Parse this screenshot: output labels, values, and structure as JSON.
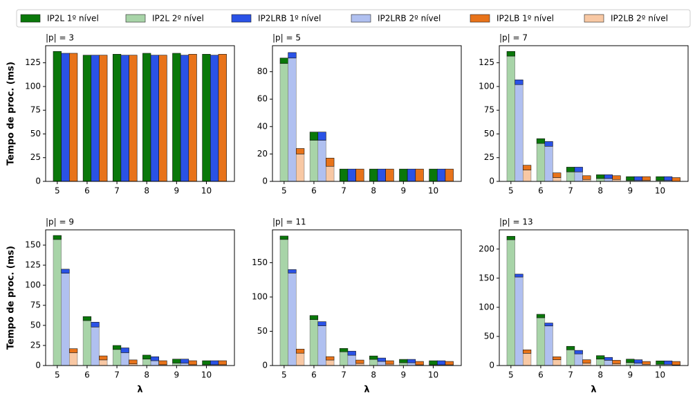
{
  "chart_data": [
    {
      "type": "bar",
      "title": "|p| = 3",
      "ylabel": "Tempo de proc. (ms)",
      "categories": [
        5,
        6,
        7,
        8,
        9,
        10
      ],
      "ylim": [
        0,
        143
      ],
      "yticks": [
        0,
        25,
        50,
        75,
        100,
        125
      ],
      "series": [
        {
          "name": "IP2L 1º nível",
          "color": "#0a780a",
          "values": [
            137,
            133,
            134,
            135,
            135,
            134
          ]
        },
        {
          "name": "IP2L 2º nível",
          "color": "#a8d4a8",
          "values": [
            0,
            0,
            0,
            0,
            0,
            0
          ]
        },
        {
          "name": "IP2LRB 1º nível",
          "color": "#2a52e6",
          "values": [
            135,
            133,
            133,
            133,
            133,
            133
          ]
        },
        {
          "name": "IP2LRB 2º nível",
          "color": "#b0c0f0",
          "values": [
            0,
            0,
            0,
            0,
            0,
            0
          ]
        },
        {
          "name": "IP2LB 1º nível",
          "color": "#e8731a",
          "values": [
            135,
            133,
            133,
            133,
            134,
            134
          ]
        },
        {
          "name": "IP2LB 2º nível",
          "color": "#f8c8a4",
          "values": [
            0,
            0,
            0,
            0,
            0,
            0
          ]
        }
      ]
    },
    {
      "type": "bar",
      "title": "|p| = 5",
      "categories": [
        5,
        6,
        7,
        8,
        9,
        10
      ],
      "ylim": [
        0,
        99
      ],
      "yticks": [
        0,
        20,
        40,
        60,
        80
      ],
      "series": [
        {
          "name": "IP2L 1º nível",
          "color": "#0a780a",
          "values": [
            4,
            6,
            9,
            9,
            9,
            9
          ]
        },
        {
          "name": "IP2L 2º nível",
          "color": "#a8d4a8",
          "values": [
            86,
            30,
            0,
            0,
            0,
            0
          ]
        },
        {
          "name": "IP2LRB 1º nível",
          "color": "#2a52e6",
          "values": [
            4,
            6,
            9,
            9,
            9,
            9
          ]
        },
        {
          "name": "IP2LRB 2º nível",
          "color": "#b0c0f0",
          "values": [
            90,
            30,
            0,
            0,
            0,
            0
          ]
        },
        {
          "name": "IP2LB 1º nível",
          "color": "#e8731a",
          "values": [
            4,
            6,
            9,
            9,
            9,
            9
          ]
        },
        {
          "name": "IP2LB 2º nível",
          "color": "#f8c8a4",
          "values": [
            20,
            11,
            0,
            0,
            0,
            0
          ]
        }
      ]
    },
    {
      "type": "bar",
      "title": "|p| = 7",
      "categories": [
        5,
        6,
        7,
        8,
        9,
        10
      ],
      "ylim": [
        0,
        143
      ],
      "yticks": [
        0,
        25,
        50,
        75,
        100,
        125
      ],
      "series": [
        {
          "name": "IP2L 1º nível",
          "color": "#0a780a",
          "values": [
            5,
            5,
            5,
            4,
            4,
            4
          ]
        },
        {
          "name": "IP2L 2º nível",
          "color": "#a8d4a8",
          "values": [
            132,
            40,
            10,
            3,
            1,
            1
          ]
        },
        {
          "name": "IP2LRB 1º nível",
          "color": "#2a52e6",
          "values": [
            5,
            5,
            5,
            4,
            4,
            4
          ]
        },
        {
          "name": "IP2LRB 2º nível",
          "color": "#b0c0f0",
          "values": [
            102,
            37,
            10,
            3,
            1,
            1
          ]
        },
        {
          "name": "IP2LB 1º nível",
          "color": "#e8731a",
          "values": [
            5,
            5,
            4,
            4,
            4,
            4
          ]
        },
        {
          "name": "IP2LB 2º nível",
          "color": "#f8c8a4",
          "values": [
            12,
            4,
            2,
            2,
            1,
            0
          ]
        }
      ]
    },
    {
      "type": "bar",
      "title": "|p| = 9",
      "ylabel": "Tempo de proc. (ms)",
      "xlabel": "λ",
      "categories": [
        5,
        6,
        7,
        8,
        9,
        10
      ],
      "ylim": [
        0,
        169
      ],
      "yticks": [
        0,
        25,
        50,
        75,
        100,
        125,
        150
      ],
      "series": [
        {
          "name": "IP2L 1º nível",
          "color": "#0a780a",
          "values": [
            5,
            5,
            5,
            5,
            5,
            5
          ]
        },
        {
          "name": "IP2L 2º nível",
          "color": "#a8d4a8",
          "values": [
            157,
            56,
            20,
            8,
            3,
            1
          ]
        },
        {
          "name": "IP2LRB 1º nível",
          "color": "#2a52e6",
          "values": [
            5,
            6,
            6,
            5,
            5,
            5
          ]
        },
        {
          "name": "IP2LRB 2º nível",
          "color": "#b0c0f0",
          "values": [
            115,
            48,
            16,
            6,
            3,
            1
          ]
        },
        {
          "name": "IP2LB 1º nível",
          "color": "#e8731a",
          "values": [
            5,
            5,
            5,
            5,
            5,
            5
          ]
        },
        {
          "name": "IP2LB 2º nível",
          "color": "#f8c8a4",
          "values": [
            16,
            7,
            2,
            1,
            1,
            1
          ]
        }
      ]
    },
    {
      "type": "bar",
      "title": "|p| = 11",
      "xlabel": "λ",
      "categories": [
        5,
        6,
        7,
        8,
        9,
        10
      ],
      "ylim": [
        0,
        198
      ],
      "yticks": [
        0,
        50,
        100,
        150
      ],
      "series": [
        {
          "name": "IP2L 1º nível",
          "color": "#0a780a",
          "values": [
            5,
            6,
            5,
            5,
            5,
            6
          ]
        },
        {
          "name": "IP2L 2º nível",
          "color": "#a8d4a8",
          "values": [
            184,
            67,
            20,
            9,
            4,
            1
          ]
        },
        {
          "name": "IP2LRB 1º nível",
          "color": "#2a52e6",
          "values": [
            5,
            6,
            6,
            5,
            5,
            6
          ]
        },
        {
          "name": "IP2LRB 2º nível",
          "color": "#b0c0f0",
          "values": [
            135,
            58,
            15,
            6,
            4,
            1
          ]
        },
        {
          "name": "IP2LB 1º nível",
          "color": "#e8731a",
          "values": [
            6,
            5,
            5,
            5,
            5,
            5
          ]
        },
        {
          "name": "IP2LB 2º nível",
          "color": "#f8c8a4",
          "values": [
            18,
            8,
            3,
            2,
            1,
            1
          ]
        }
      ]
    },
    {
      "type": "bar",
      "title": "|p| = 13",
      "xlabel": "λ",
      "categories": [
        5,
        6,
        7,
        8,
        9,
        10
      ],
      "ylim": [
        0,
        233
      ],
      "yticks": [
        0,
        50,
        100,
        150,
        200
      ],
      "series": [
        {
          "name": "IP2L 1º nível",
          "color": "#0a780a",
          "values": [
            6,
            6,
            6,
            6,
            6,
            6
          ]
        },
        {
          "name": "IP2L 2º nível",
          "color": "#a8d4a8",
          "values": [
            216,
            82,
            27,
            11,
            5,
            2
          ]
        },
        {
          "name": "IP2LRB 1º nível",
          "color": "#2a52e6",
          "values": [
            5,
            5,
            6,
            5,
            6,
            6
          ]
        },
        {
          "name": "IP2LRB 2º nível",
          "color": "#b0c0f0",
          "values": [
            152,
            68,
            20,
            9,
            4,
            2
          ]
        },
        {
          "name": "IP2LB 1º nível",
          "color": "#e8731a",
          "values": [
            6,
            5,
            6,
            6,
            5,
            6
          ]
        },
        {
          "name": "IP2LB 2º nível",
          "color": "#f8c8a4",
          "values": [
            21,
            10,
            4,
            3,
            2,
            1
          ]
        }
      ]
    }
  ]
}
